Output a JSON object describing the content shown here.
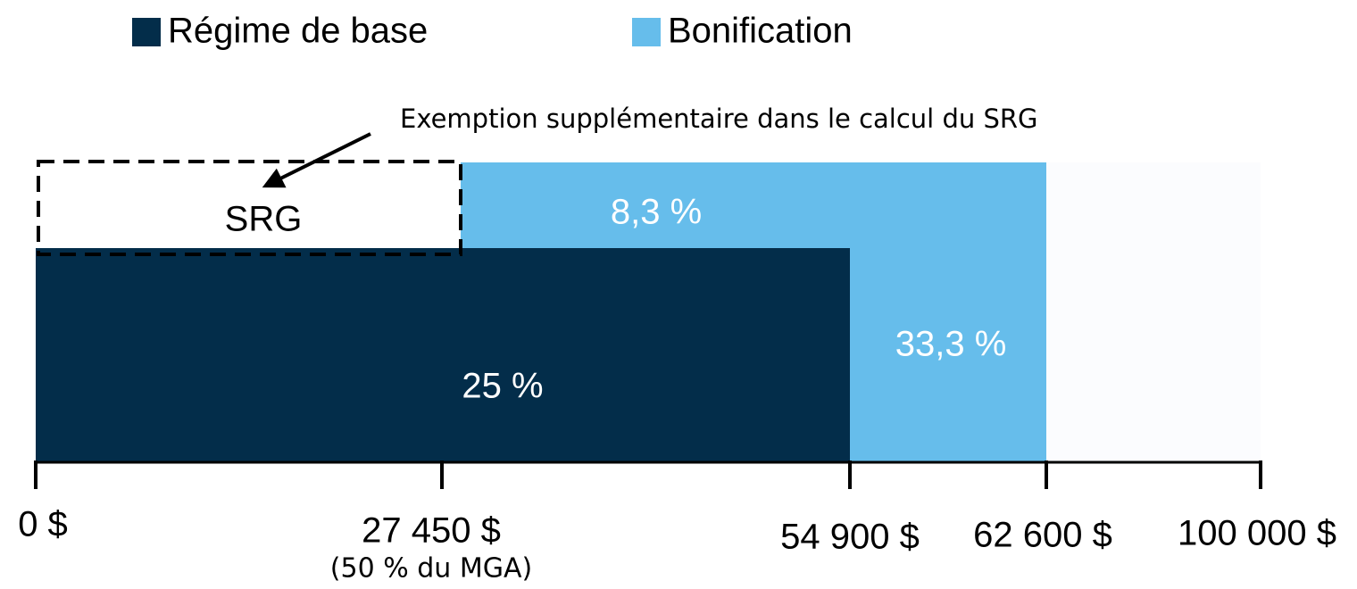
{
  "legend": {
    "items": [
      "Régime de base",
      "Bonification"
    ]
  },
  "annotation": "Exemption supplémentaire dans le calcul du SRG",
  "box_label": "SRG",
  "segments": {
    "bonus_top": "8,3 %",
    "bonus_right": "33,3 %",
    "base": "25 %"
  },
  "axis": {
    "ticks": [
      "0 $",
      "27 450 $",
      "54 900 $",
      "62 600 $",
      "100 000 $"
    ],
    "note": "(50 % du MGA)"
  }
}
